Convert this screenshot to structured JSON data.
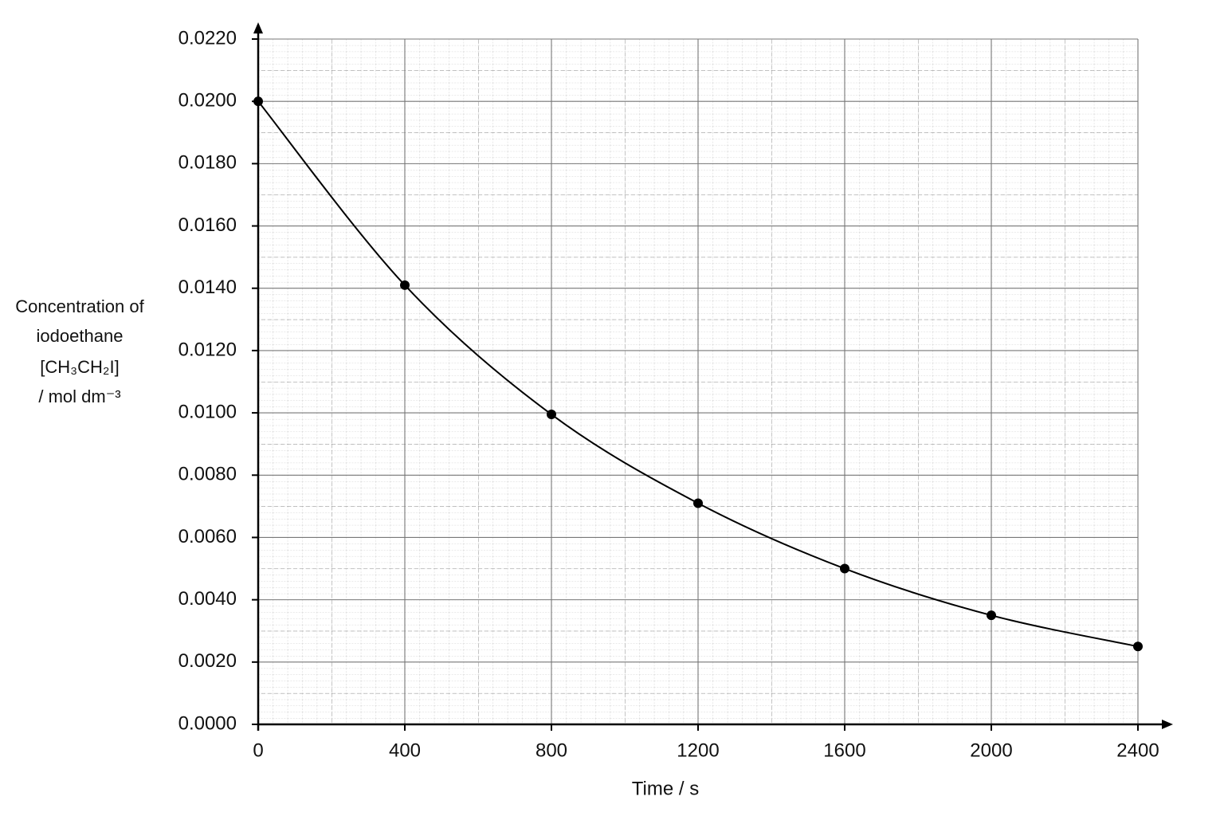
{
  "chart_data": {
    "type": "scatter",
    "ylabel": [
      "Concentration of",
      "iodoethane",
      "[CH₃CH₂I]",
      "/ mol dm⁻³"
    ],
    "xlabel": "Time / s",
    "x": [
      0,
      400,
      800,
      1200,
      1600,
      2000,
      2400
    ],
    "series": [
      {
        "color": "#000000",
        "values": [
          0.02,
          0.0141,
          0.00995,
          0.0071,
          0.005,
          0.0035,
          0.0025
        ]
      }
    ],
    "xlim": [
      0,
      2400
    ],
    "xticks": [
      0,
      400,
      800,
      1200,
      1600,
      2000,
      2400
    ],
    "ylim": [
      0,
      0.022
    ],
    "yticks": [
      {
        "value": 0,
        "label": "0.0000"
      },
      {
        "value": 0.002,
        "label": "0.0020"
      },
      {
        "value": 0.004,
        "label": "0.0040"
      },
      {
        "value": 0.006,
        "label": "0.0060"
      },
      {
        "value": 0.008,
        "label": "0.0080"
      },
      {
        "value": 0.01,
        "label": "0.0100"
      },
      {
        "value": 0.012,
        "label": "0.0120"
      },
      {
        "value": 0.014,
        "label": "0.0140"
      },
      {
        "value": 0.016,
        "label": "0.0160"
      },
      {
        "value": 0.018,
        "label": "0.0180"
      },
      {
        "value": 0.02,
        "label": "0.0200"
      },
      {
        "value": 0.022,
        "label": "0.0220"
      }
    ],
    "grid": true
  }
}
